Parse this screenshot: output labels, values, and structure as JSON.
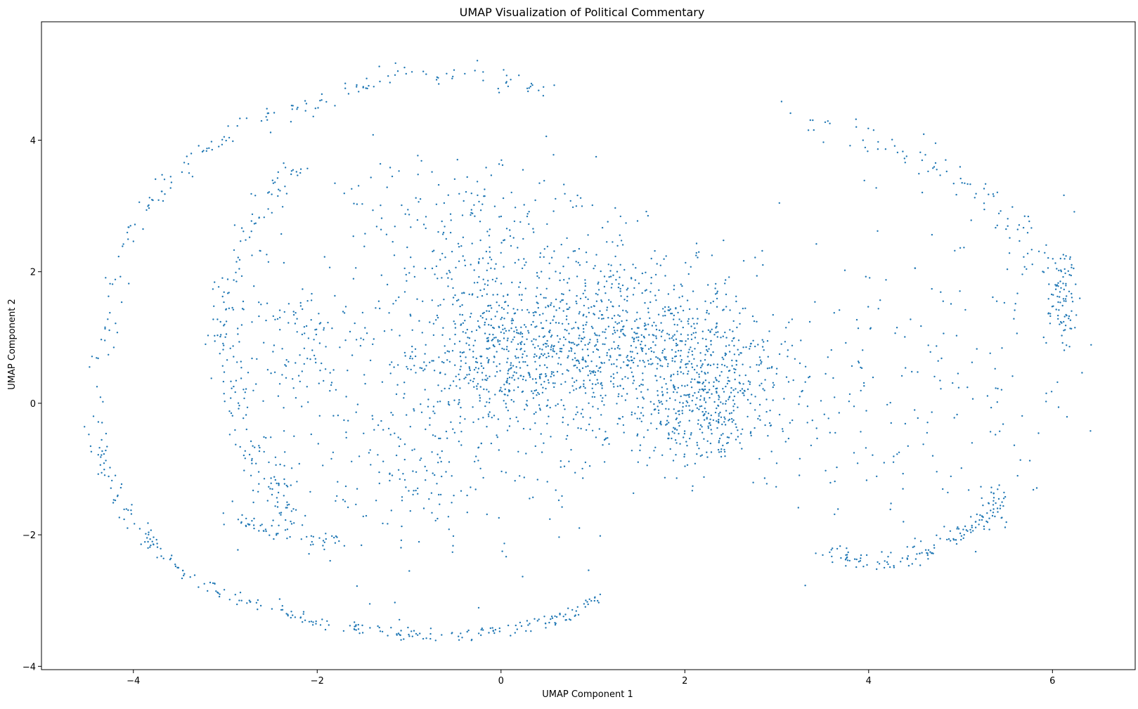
{
  "chart_data": {
    "type": "scatter",
    "title": "UMAP Visualization of Political Commentary",
    "xlabel": "UMAP Component 1",
    "ylabel": "UMAP Component 2",
    "xlim": [
      -5.0,
      6.9
    ],
    "ylim": [
      -4.05,
      5.8
    ],
    "xticks": [
      -4,
      -2,
      0,
      2,
      4,
      6
    ],
    "yticks": [
      -4,
      -2,
      0,
      2,
      4
    ],
    "xtick_labels": [
      "−4",
      "−2",
      "0",
      "2",
      "4",
      "6"
    ],
    "ytick_labels": [
      "−4",
      "−2",
      "0",
      "2",
      "4"
    ],
    "grid": false,
    "legend": "none",
    "color": "#1f77b4",
    "point_count_estimate": 3500,
    "clusters": [
      {
        "description": "outer lower-left arc",
        "path": [
          [
            -4.4,
            -0.6
          ],
          [
            -4.25,
            -1.2
          ],
          [
            -4.0,
            -1.8
          ],
          [
            -3.7,
            -2.3
          ],
          [
            -3.3,
            -2.7
          ],
          [
            -2.8,
            -3.0
          ],
          [
            -2.2,
            -3.25
          ],
          [
            -1.6,
            -3.42
          ],
          [
            -1.0,
            -3.52
          ],
          [
            -0.4,
            -3.52
          ],
          [
            0.2,
            -3.42
          ],
          [
            0.7,
            -3.25
          ],
          [
            1.1,
            -2.95
          ]
        ],
        "n": 260,
        "spread": 0.05
      },
      {
        "description": "outer upper-left arc",
        "path": [
          [
            -4.4,
            -0.5
          ],
          [
            -4.35,
            0.6
          ],
          [
            -4.25,
            1.5
          ],
          [
            -4.1,
            2.2
          ],
          [
            -3.9,
            2.9
          ],
          [
            -3.6,
            3.4
          ],
          [
            -3.3,
            3.8
          ],
          [
            -2.9,
            4.1
          ],
          [
            -2.5,
            4.35
          ],
          [
            -2.0,
            4.6
          ],
          [
            -1.5,
            4.85
          ],
          [
            -1.0,
            5.0
          ],
          [
            -0.5,
            5.0
          ],
          [
            0.0,
            4.9
          ],
          [
            0.5,
            4.8
          ]
        ],
        "n": 170,
        "spread": 0.08
      },
      {
        "description": "inner left arc",
        "path": [
          [
            -2.2,
            3.6
          ],
          [
            -2.5,
            3.2
          ],
          [
            -2.8,
            2.5
          ],
          [
            -3.0,
            1.8
          ],
          [
            -3.05,
            1.0
          ],
          [
            -2.9,
            0.2
          ],
          [
            -2.7,
            -0.5
          ],
          [
            -2.5,
            -1.2
          ],
          [
            -2.3,
            -1.8
          ]
        ],
        "n": 190,
        "spread": 0.1
      },
      {
        "description": "inner lower arc",
        "path": [
          [
            -3.0,
            -1.7
          ],
          [
            -2.6,
            -1.9
          ],
          [
            -2.2,
            -2.05
          ],
          [
            -1.8,
            -2.1
          ]
        ],
        "n": 50,
        "spread": 0.06
      },
      {
        "description": "central dense blob",
        "center": [
          0.1,
          0.8
        ],
        "sx": 0.75,
        "sy": 0.75,
        "n": 900
      },
      {
        "description": "central-right blob",
        "center": [
          1.4,
          1.0
        ],
        "sx": 0.55,
        "sy": 0.7,
        "n": 420
      },
      {
        "description": "right-center blob",
        "center": [
          2.3,
          0.5
        ],
        "sx": 0.45,
        "sy": 0.55,
        "n": 380
      },
      {
        "description": "lower-right blob",
        "center": [
          2.2,
          -0.3
        ],
        "sx": 0.35,
        "sy": 0.35,
        "n": 160
      },
      {
        "description": "upper-middle scatter",
        "center": [
          -0.5,
          2.9
        ],
        "sx": 0.8,
        "sy": 0.5,
        "n": 160
      },
      {
        "description": "left-middle scatter",
        "center": [
          -2.3,
          0.9
        ],
        "sx": 0.35,
        "sy": 0.55,
        "n": 110
      },
      {
        "description": "mid-lower scatter",
        "center": [
          -0.8,
          -1.1
        ],
        "sx": 0.9,
        "sy": 0.8,
        "n": 200
      },
      {
        "description": "right lower arc",
        "path": [
          [
            3.6,
            -2.3
          ],
          [
            4.1,
            -2.45
          ],
          [
            4.6,
            -2.3
          ],
          [
            5.0,
            -2.0
          ],
          [
            5.3,
            -1.7
          ],
          [
            5.4,
            -1.3
          ]
        ],
        "n": 150,
        "spread": 0.07
      },
      {
        "description": "right upper arc",
        "path": [
          [
            3.0,
            4.5
          ],
          [
            3.6,
            4.2
          ],
          [
            4.2,
            3.9
          ],
          [
            4.7,
            3.6
          ],
          [
            5.2,
            3.2
          ],
          [
            5.6,
            2.6
          ],
          [
            5.9,
            2.0
          ]
        ],
        "n": 90,
        "spread": 0.12
      },
      {
        "description": "far-right vertical cluster",
        "center": [
          6.1,
          1.6
        ],
        "sx": 0.08,
        "sy": 0.35,
        "n": 90
      },
      {
        "description": "right middle scatter",
        "center": [
          4.2,
          0.3
        ],
        "sx": 1.0,
        "sy": 1.2,
        "n": 240
      }
    ]
  }
}
